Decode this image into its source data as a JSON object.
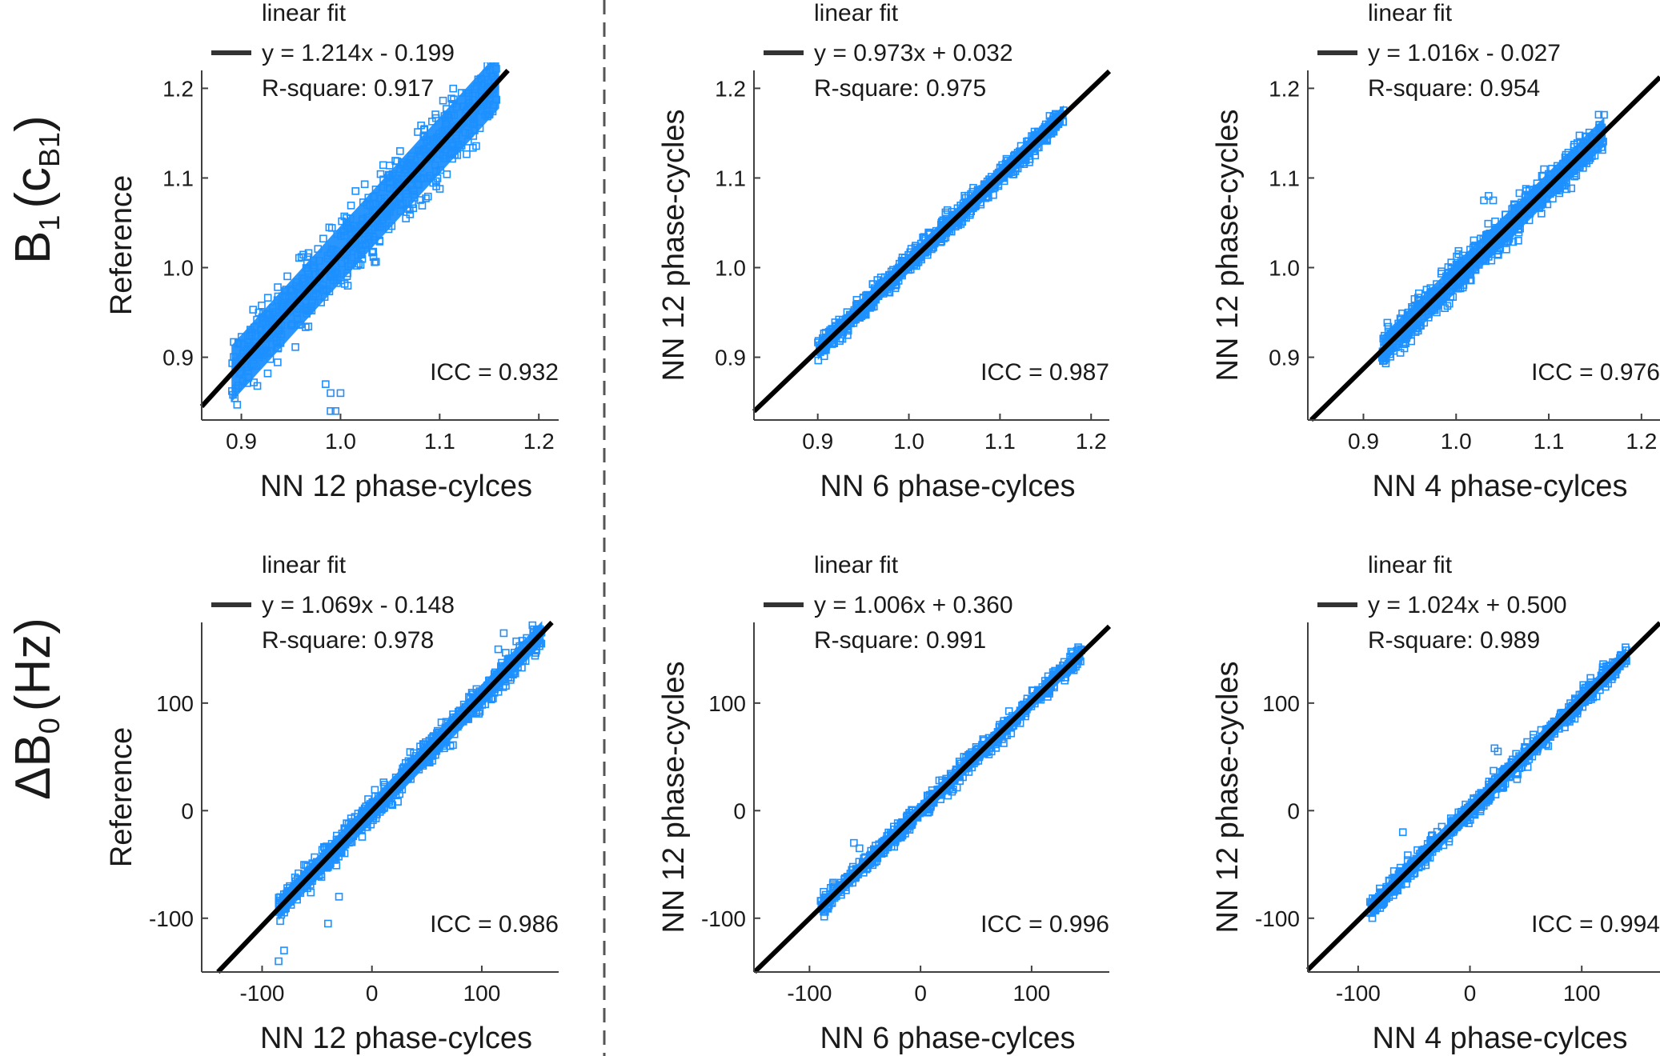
{
  "figure": {
    "row_labels": [
      {
        "main": "B",
        "sub": "1",
        "rest_open": "(c",
        "rest_sub": "B1",
        "rest_close": ")"
      },
      {
        "main": "ΔB",
        "sub": "0",
        "rest_open": "(Hz)",
        "rest_sub": "",
        "rest_close": ""
      }
    ],
    "colors": {
      "scatter": "#1e90ff",
      "fit_line": "#000000",
      "axis": "#404040",
      "text": "#1a1a1a",
      "divider": "#555555"
    }
  },
  "chart_data": [
    {
      "type": "scatter",
      "row": 0,
      "col": 0,
      "xlabel": "NN 12 phase-cylces",
      "ylabel": "Reference",
      "xlim": [
        0.86,
        1.22
      ],
      "ylim": [
        0.83,
        1.22
      ],
      "xticks": [
        0.9,
        1.0,
        1.1,
        1.2
      ],
      "xtick_labels": [
        "0.9",
        "1.0",
        "1.1",
        "1.2"
      ],
      "yticks": [
        0.9,
        1.0,
        1.1,
        1.2
      ],
      "ytick_labels": [
        "0.9",
        "1.0",
        "1.1",
        "1.2"
      ],
      "legend": {
        "title": "linear fit",
        "equation": "y = 1.214x - 0.199",
        "rsquare": "R-square: 0.917"
      },
      "fit": {
        "slope": 1.214,
        "intercept": -0.199
      },
      "icc": "ICC = 0.932",
      "cloud": {
        "x_range": [
          0.89,
          1.16
        ],
        "spread": 0.035,
        "outliers": [
          [
            0.985,
            0.87
          ],
          [
            0.99,
            0.86
          ],
          [
            1.0,
            0.86
          ],
          [
            0.99,
            0.84
          ],
          [
            0.995,
            0.84
          ]
        ]
      }
    },
    {
      "type": "scatter",
      "row": 0,
      "col": 1,
      "xlabel": "NN 6 phase-cylces",
      "ylabel": "NN 12 phase-cycles",
      "xlim": [
        0.83,
        1.22
      ],
      "ylim": [
        0.83,
        1.22
      ],
      "xticks": [
        0.9,
        1.0,
        1.1,
        1.2
      ],
      "xtick_labels": [
        "0.9",
        "1.0",
        "1.1",
        "1.2"
      ],
      "yticks": [
        0.9,
        1.0,
        1.1,
        1.2
      ],
      "ytick_labels": [
        "0.9",
        "1.0",
        "1.1",
        "1.2"
      ],
      "legend": {
        "title": "linear fit",
        "equation": "y = 0.973x + 0.032",
        "rsquare": "R-square: 0.975"
      },
      "fit": {
        "slope": 0.973,
        "intercept": 0.032
      },
      "icc": "ICC = 0.987",
      "cloud": {
        "x_range": [
          0.9,
          1.17
        ],
        "spread": 0.012,
        "outliers": []
      }
    },
    {
      "type": "scatter",
      "row": 0,
      "col": 2,
      "xlabel": "NN 4 phase-cylces",
      "ylabel": "NN 12 phase-cycles",
      "xlim": [
        0.84,
        1.22
      ],
      "ylim": [
        0.83,
        1.22
      ],
      "xticks": [
        0.9,
        1.0,
        1.1,
        1.2
      ],
      "xtick_labels": [
        "0.9",
        "1.0",
        "1.1",
        "1.2"
      ],
      "yticks": [
        0.9,
        1.0,
        1.1,
        1.2
      ],
      "ytick_labels": [
        "0.9",
        "1.0",
        "1.1",
        "1.2"
      ],
      "legend": {
        "title": "linear fit",
        "equation": "y = 1.016x - 0.027",
        "rsquare": "R-square: 0.954"
      },
      "fit": {
        "slope": 1.016,
        "intercept": -0.027
      },
      "icc": "ICC = 0.976",
      "cloud": {
        "x_range": [
          0.92,
          1.16
        ],
        "spread": 0.018,
        "outliers": [
          [
            1.03,
            1.075
          ],
          [
            1.035,
            1.08
          ],
          [
            1.04,
            1.075
          ]
        ]
      }
    },
    {
      "type": "scatter",
      "row": 1,
      "col": 0,
      "xlabel": "NN 12 phase-cylces",
      "ylabel": "Reference",
      "xlim": [
        -155,
        170
      ],
      "ylim": [
        -150,
        175
      ],
      "xticks": [
        -100,
        0,
        100
      ],
      "xtick_labels": [
        "-100",
        "0",
        "100"
      ],
      "yticks": [
        -100,
        0,
        100
      ],
      "ytick_labels": [
        "-100",
        "0",
        "100"
      ],
      "legend": {
        "title": "linear fit",
        "equation": "y = 1.069x - 0.148",
        "rsquare": "R-square: 0.978"
      },
      "fit": {
        "slope": 1.069,
        "intercept": -0.148
      },
      "icc": "ICC = 0.986",
      "cloud": {
        "x_range": [
          -85,
          155
        ],
        "spread": 12,
        "outliers": [
          [
            -85,
            -140
          ],
          [
            -80,
            -130
          ],
          [
            -30,
            -80
          ],
          [
            -40,
            -105
          ],
          [
            115,
            150
          ],
          [
            120,
            165
          ]
        ]
      }
    },
    {
      "type": "scatter",
      "row": 1,
      "col": 1,
      "xlabel": "NN 6 phase-cylces",
      "ylabel": "NN 12 phase-cycles",
      "xlim": [
        -150,
        170
      ],
      "ylim": [
        -150,
        175
      ],
      "xticks": [
        -100,
        0,
        100
      ],
      "xtick_labels": [
        "-100",
        "0",
        "100"
      ],
      "yticks": [
        -100,
        0,
        100
      ],
      "ytick_labels": [
        "-100",
        "0",
        "100"
      ],
      "legend": {
        "title": "linear fit",
        "equation": "y = 1.006x + 0.360",
        "rsquare": "R-square: 0.991"
      },
      "fit": {
        "slope": 1.006,
        "intercept": 0.36
      },
      "icc": "ICC = 0.996",
      "cloud": {
        "x_range": [
          -90,
          145
        ],
        "spread": 8,
        "outliers": [
          [
            -60,
            -30
          ],
          [
            -55,
            -35
          ]
        ]
      }
    },
    {
      "type": "scatter",
      "row": 1,
      "col": 2,
      "xlabel": "NN 4 phase-cylces",
      "ylabel": "NN 12 phase-cycles",
      "xlim": [
        -145,
        170
      ],
      "ylim": [
        -150,
        175
      ],
      "xticks": [
        -100,
        0,
        100
      ],
      "xtick_labels": [
        "-100",
        "0",
        "100"
      ],
      "yticks": [
        -100,
        0,
        100
      ],
      "ytick_labels": [
        "-100",
        "0",
        "100"
      ],
      "legend": {
        "title": "linear fit",
        "equation": "y = 1.024x + 0.500",
        "rsquare": "R-square: 0.989"
      },
      "fit": {
        "slope": 1.024,
        "intercept": 0.5
      },
      "icc": "ICC = 0.994",
      "cloud": {
        "x_range": [
          -90,
          140
        ],
        "spread": 9,
        "outliers": [
          [
            -60,
            -20
          ],
          [
            22,
            58
          ],
          [
            25,
            55
          ],
          [
            70,
            60
          ]
        ]
      }
    }
  ]
}
